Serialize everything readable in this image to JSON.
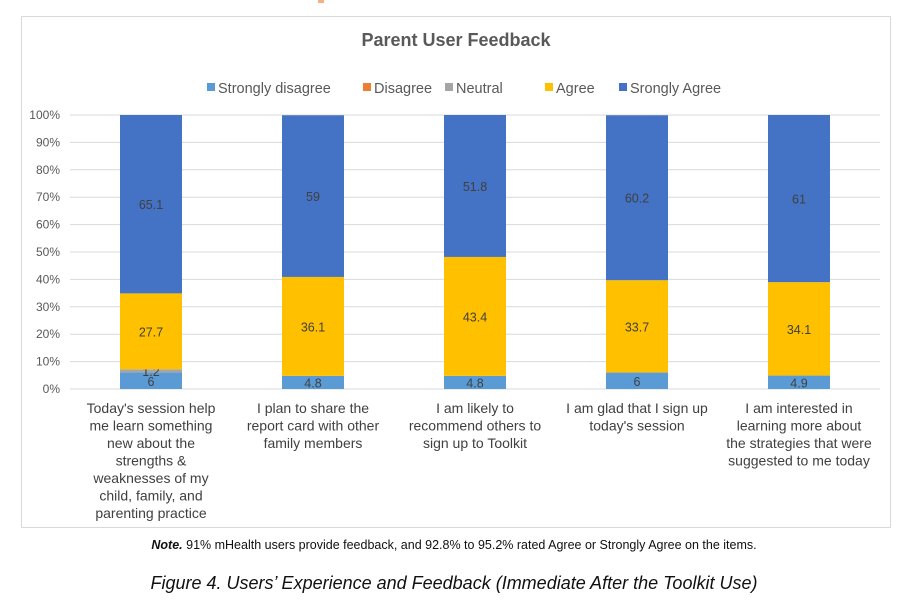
{
  "chart_data": {
    "type": "bar",
    "stacked": true,
    "title": "Parent User Feedback",
    "legend_position": "top",
    "ylim": [
      0,
      100
    ],
    "yticks": [
      "0%",
      "10%",
      "20%",
      "30%",
      "40%",
      "50%",
      "60%",
      "70%",
      "80%",
      "90%",
      "100%"
    ],
    "grid": true,
    "categories": [
      [
        "Today's session help",
        "me learn something",
        "new about the",
        "strengths &",
        "weaknesses of my",
        "child, family, and",
        "parenting practice"
      ],
      [
        "I plan to share the",
        "report card with other",
        "family members"
      ],
      [
        "I am likely to",
        "recommend others to",
        "sign up to Toolkit"
      ],
      [
        "I am glad that I sign up",
        "today's session"
      ],
      [
        "I am interested in",
        "learning more about",
        "the strategies that were",
        "suggested to me today"
      ]
    ],
    "series": [
      {
        "name": "Strongly disagree",
        "color": "#5B9BD5",
        "values": [
          6,
          4.8,
          4.8,
          6,
          4.9
        ]
      },
      {
        "name": "Disagree",
        "color": "#ED7D31",
        "values": [
          null,
          null,
          null,
          null,
          null
        ]
      },
      {
        "name": "Neutral",
        "color": "#A5A5A5",
        "values": [
          1.2,
          null,
          null,
          null,
          null
        ]
      },
      {
        "name": "Agree",
        "color": "#FFC000",
        "values": [
          27.7,
          36.1,
          43.4,
          33.7,
          34.1
        ]
      },
      {
        "name": "Srongly Agree",
        "color": "#4472C4",
        "values": [
          65.1,
          59,
          51.8,
          60.2,
          61
        ]
      }
    ]
  },
  "note": {
    "lead": "Note.",
    "text": " 91% mHealth users provide feedback, and 92.8% to 95.2% rated Agree or Strongly Agree on the items."
  },
  "caption": "Figure 4. Users’ Experience and Feedback (Immediate After the Toolkit Use)"
}
